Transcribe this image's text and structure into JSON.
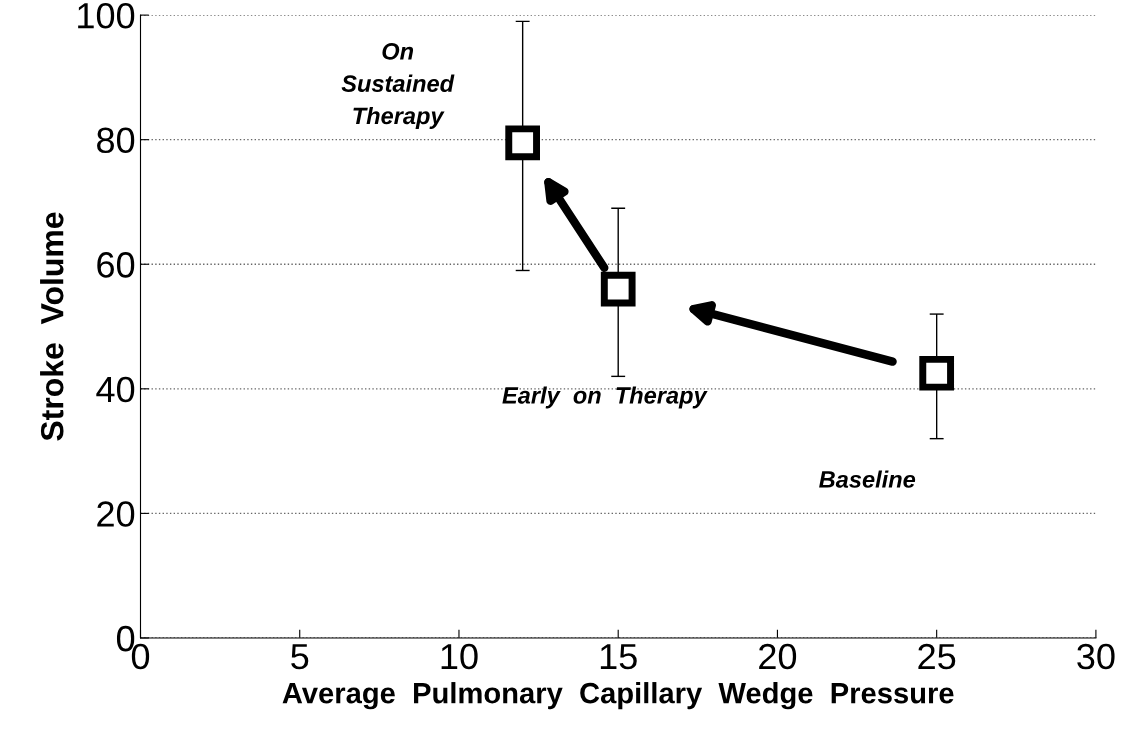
{
  "chart_data": {
    "type": "scatter",
    "xlabel": "Average  Pulmonary  Capillary  Wedge  Pressure",
    "ylabel": "Stroke  Volume",
    "x": [
      12,
      15,
      25
    ],
    "series": [
      {
        "color": "#000000",
        "values": [
          79.5,
          56,
          42.5
        ],
        "errors": [
          [
            59,
            99
          ],
          [
            42,
            69
          ],
          [
            32,
            52
          ]
        ]
      }
    ],
    "xlim": [
      0,
      30
    ],
    "xticks": [
      0,
      5,
      10,
      15,
      20,
      25,
      30
    ],
    "ylim": [
      0,
      100
    ],
    "yticks": [
      0,
      20,
      40,
      60,
      80,
      100
    ],
    "grid": "y",
    "marker": "square",
    "annotations": [
      "On\nSustained\nTherapy",
      "Early  on  Therapy",
      "Baseline"
    ]
  }
}
